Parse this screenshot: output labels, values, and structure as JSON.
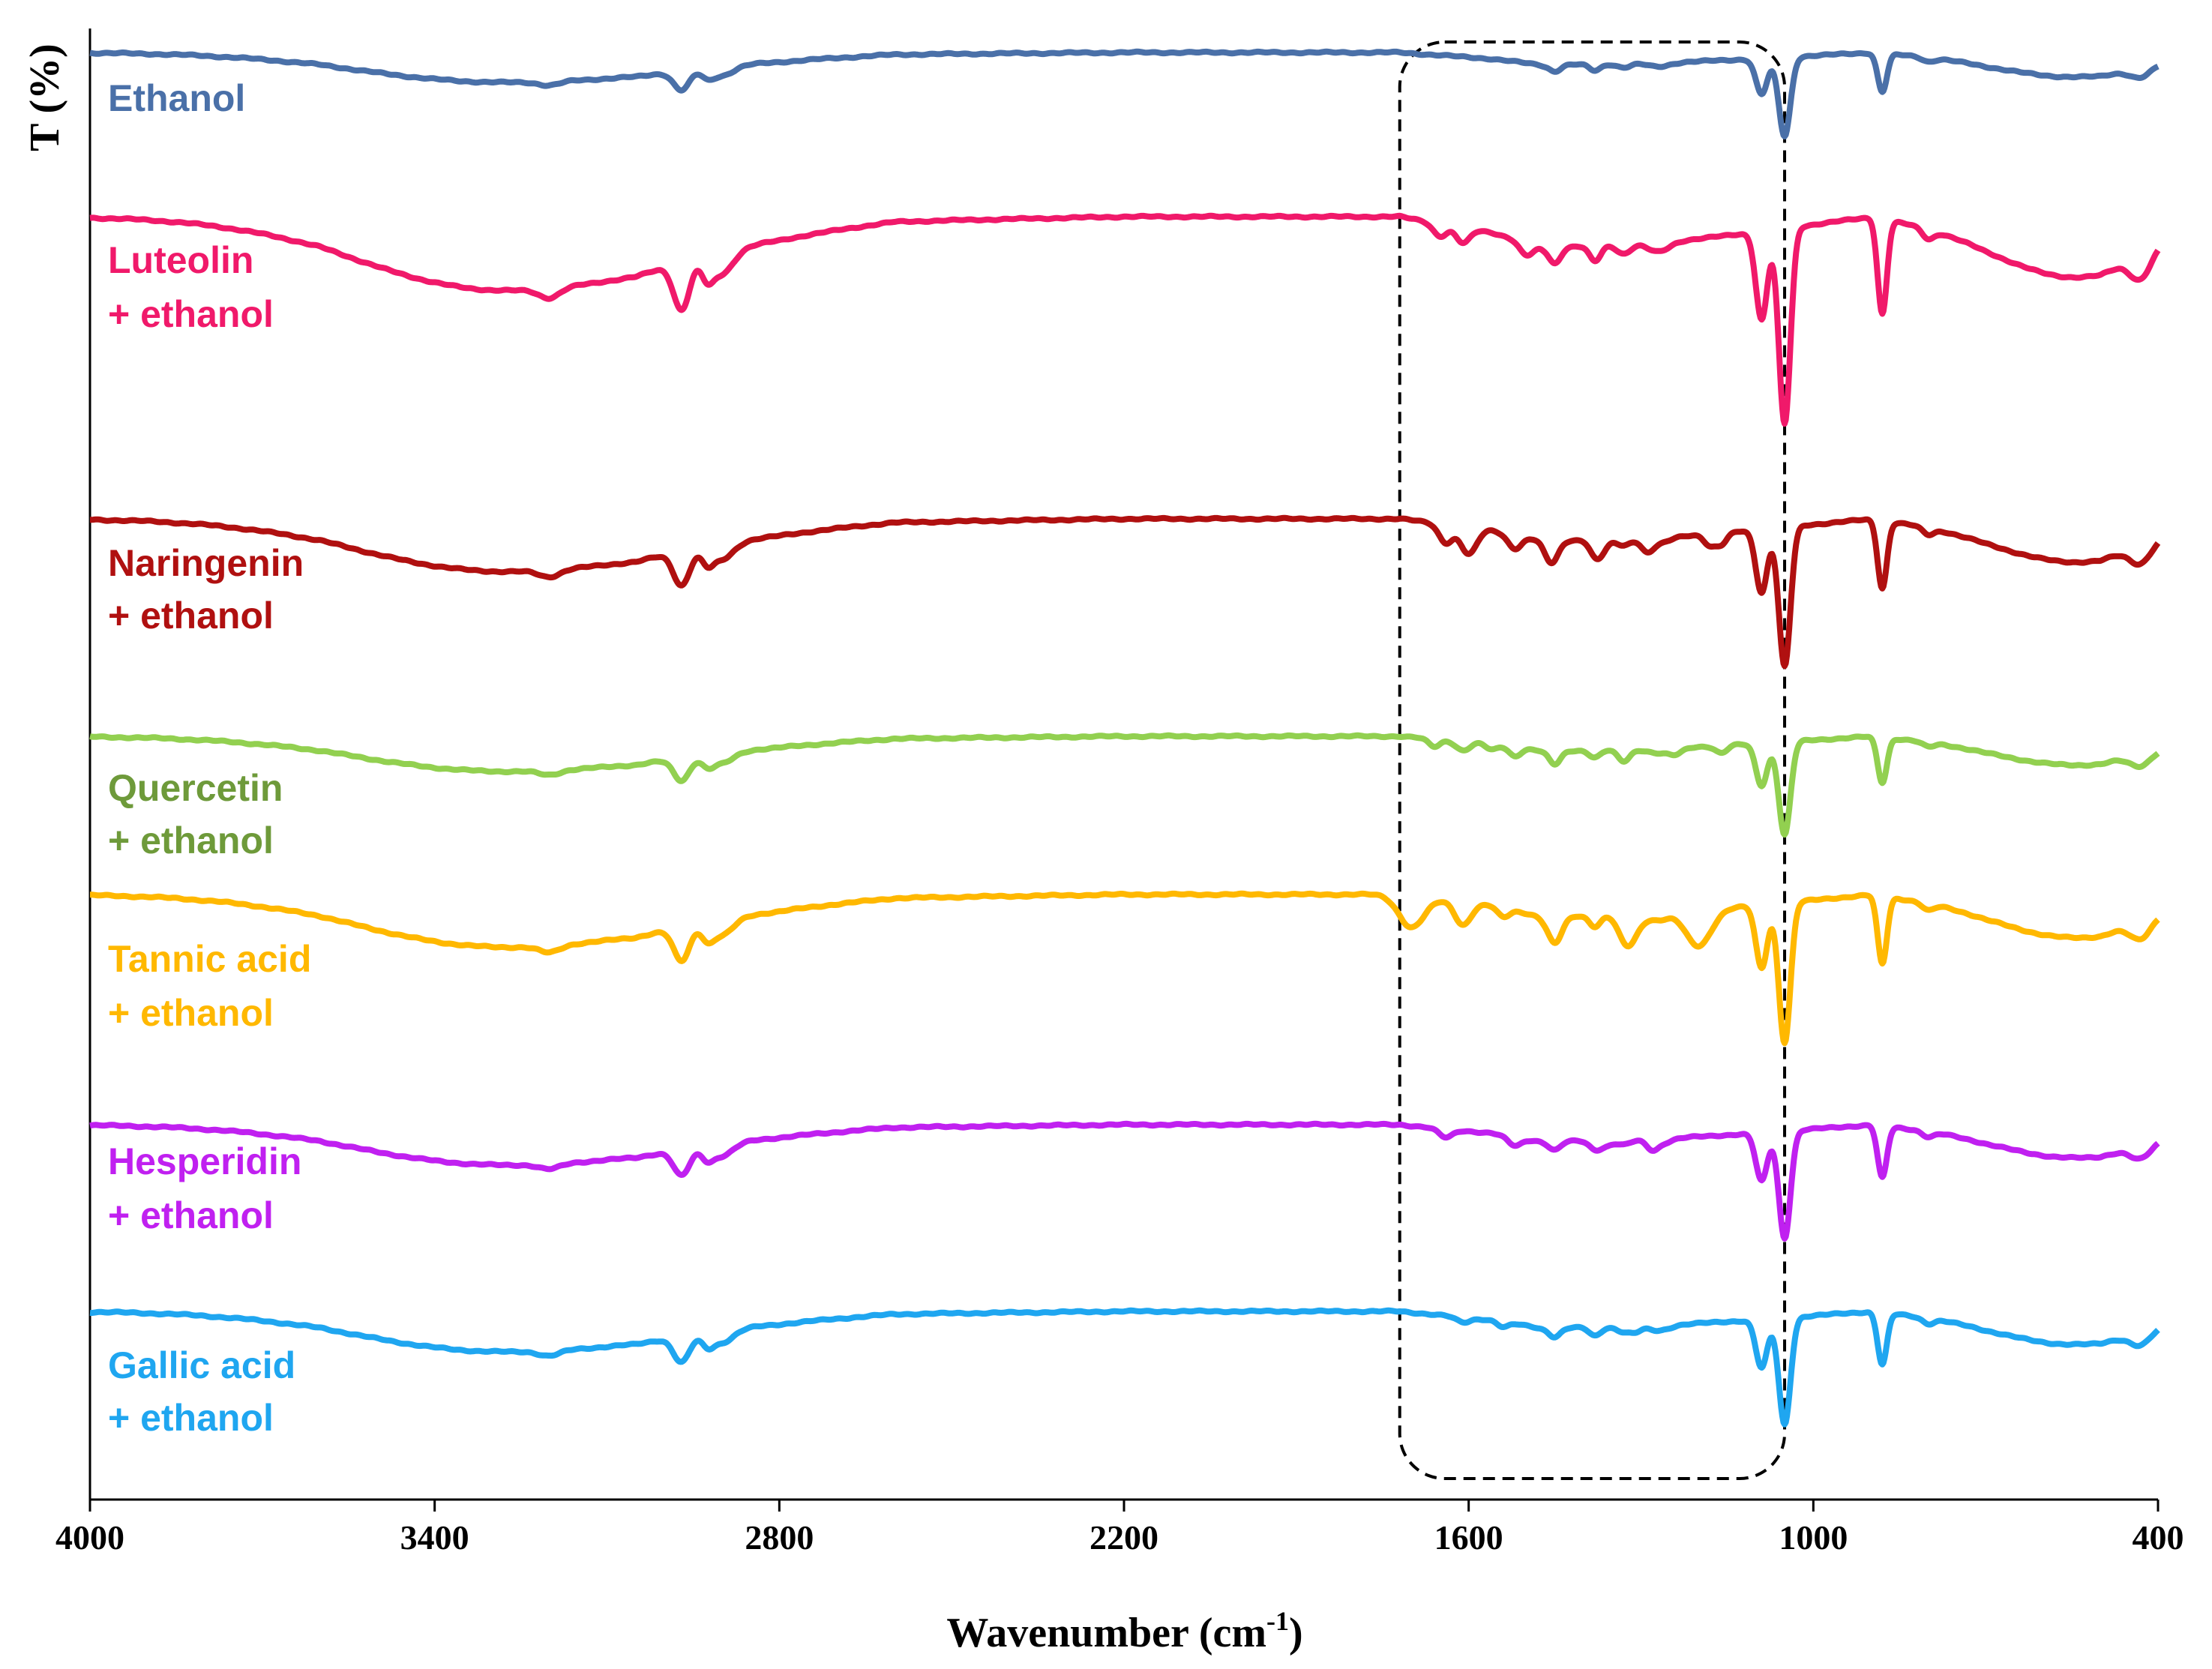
{
  "chart_data": {
    "type": "line",
    "title": "",
    "xlabel_main": "Wavenumber (cm",
    "xlabel_sup": "-1",
    "xlabel_close": ")",
    "ylabel": "T (%)",
    "xlim": [
      4000,
      400
    ],
    "x_reversed": true,
    "xticks": [
      4000,
      3400,
      2800,
      2200,
      1600,
      1000,
      400
    ],
    "xtick_labels": [
      "4000",
      "3400",
      "2800",
      "2200",
      "1600",
      "1000",
      "400"
    ],
    "y_ticks_shown": false,
    "highlight_region": {
      "x_from": 1720,
      "x_to": 1050,
      "style": "dashed rounded box"
    },
    "peaks_cm-1": [
      3330,
      2970,
      2900,
      1630,
      1450,
      1380,
      1330,
      1270,
      1090,
      1050,
      880,
      430
    ],
    "series": [
      {
        "name": "Ethanol",
        "label_lines": [
          "Ethanol"
        ],
        "color": "#4A70A8",
        "label_color": "#4A70A8"
      },
      {
        "name": "Luteolin + ethanol",
        "label_lines": [
          "Luteolin",
          "+ ethanol"
        ],
        "color": "#F0196A",
        "label_color": "#F0196A"
      },
      {
        "name": "Naringenin + ethanol",
        "label_lines": [
          "Naringenin",
          "+ ethanol"
        ],
        "color": "#B01010",
        "label_color": "#B01010"
      },
      {
        "name": "Quercetin + ethanol",
        "label_lines": [
          "Quercetin",
          "+ ethanol"
        ],
        "color": "#92D050",
        "label_color": "#6E9A3A"
      },
      {
        "name": "Tannic acid + ethanol",
        "label_lines": [
          "Tannic acid",
          "+ ethanol"
        ],
        "color": "#FFB800",
        "label_color": "#FFB800"
      },
      {
        "name": "Hesperidin + ethanol",
        "label_lines": [
          "Hesperidin",
          "+ ethanol"
        ],
        "color": "#C020F0",
        "label_color": "#C020F0"
      },
      {
        "name": "Gallic acid + ethanol",
        "label_lines": [
          "Gallic acid",
          "+ ethanol"
        ],
        "color": "#1FA6F0",
        "label_color": "#1FA6F0"
      }
    ]
  }
}
